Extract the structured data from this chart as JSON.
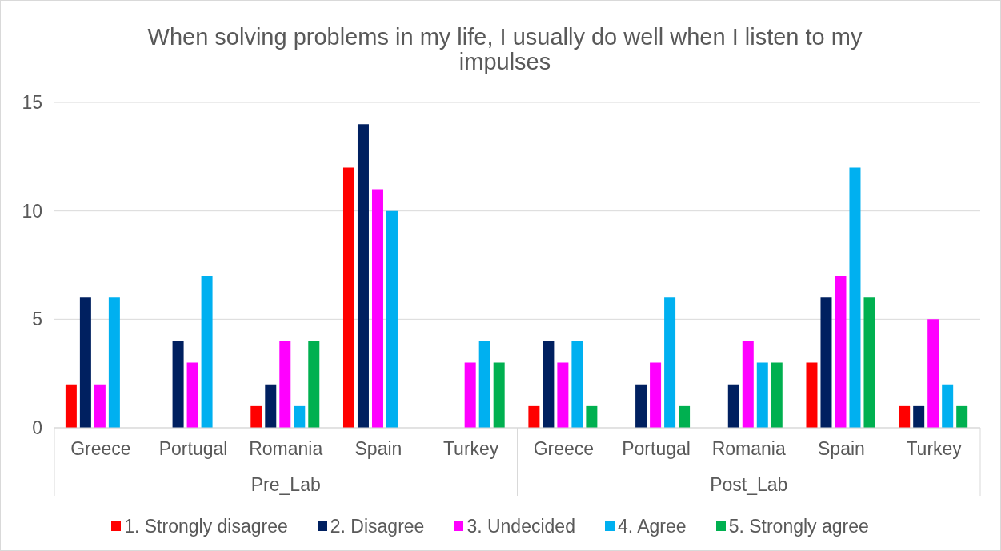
{
  "chart_data": {
    "type": "bar",
    "title": "When solving problems in my life, I usually do well when I listen to my impulses",
    "categories": [
      "Greece",
      "Portugal",
      "Romania",
      "Spain",
      "Turkey",
      "Greece",
      "Portugal",
      "Romania",
      "Spain",
      "Turkey"
    ],
    "annotations": [
      "Pre_Lab",
      "Post_Lab"
    ],
    "series": [
      {
        "name": "1. Strongly disagree",
        "color": "#ff0000",
        "values": [
          2,
          null,
          1,
          12,
          null,
          1,
          null,
          null,
          3,
          1
        ]
      },
      {
        "name": "2. Disagree",
        "color": "#002060",
        "values": [
          6,
          4,
          2,
          14,
          null,
          4,
          2,
          2,
          6,
          1
        ]
      },
      {
        "name": "3. Undecided",
        "color": "#ff00ff",
        "values": [
          2,
          3,
          4,
          11,
          3,
          3,
          3,
          4,
          7,
          5
        ]
      },
      {
        "name": "4. Agree",
        "color": "#00b0f0",
        "values": [
          6,
          7,
          1,
          10,
          4,
          4,
          6,
          3,
          12,
          2
        ]
      },
      {
        "name": "5. Strongly agree",
        "color": "#00b050",
        "values": [
          null,
          null,
          4,
          null,
          3,
          1,
          1,
          3,
          6,
          1
        ]
      }
    ],
    "ylim": [
      0,
      15
    ],
    "yticks": [
      0,
      5,
      10,
      15
    ],
    "grid": "y",
    "legend": "bottom"
  }
}
